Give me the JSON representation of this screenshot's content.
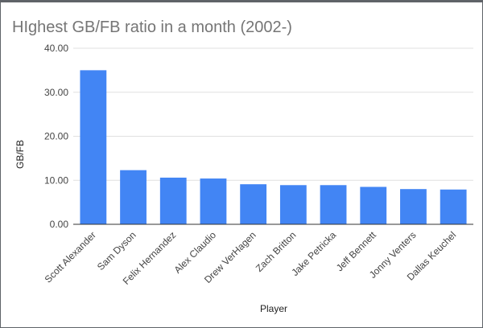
{
  "chart_data": {
    "type": "bar",
    "title": "HIghest GB/FB ratio in a month (2002-)",
    "xlabel": "Player",
    "ylabel": "GB/FB",
    "categories": [
      "Scott Alexander",
      "Sam Dyson",
      "Felix Hernandez",
      "Alex Claudio",
      "Drew VerHagen",
      "Zach Britton",
      "Jake Petricka",
      "Jeff Bennett",
      "Jonny Venters",
      "Dallas Keuchel"
    ],
    "values": [
      35.0,
      12.3,
      10.6,
      10.4,
      9.1,
      8.9,
      8.9,
      8.5,
      8.0,
      7.9
    ],
    "ylim": [
      0,
      40
    ],
    "yticks": [
      "0.00",
      "10.00",
      "20.00",
      "30.00",
      "40.00"
    ],
    "grid": true,
    "legend": "none",
    "bar_color": "#4285f4"
  }
}
